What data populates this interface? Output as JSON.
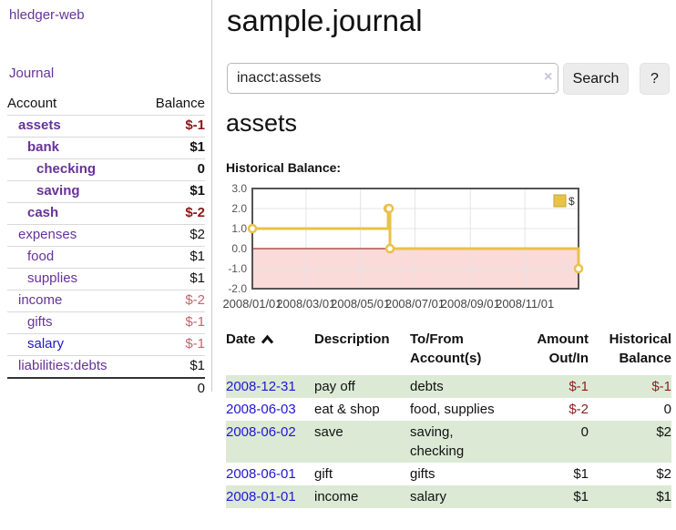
{
  "app": {
    "title": "hledger-web"
  },
  "sidebar": {
    "journal_link": "Journal",
    "accounts": {
      "header_account": "Account",
      "header_balance": "Balance",
      "rows": [
        {
          "name": "assets",
          "depth": 1,
          "bold": true,
          "balance": "$-1",
          "balance_style": "neg-strong",
          "link_color": "purple"
        },
        {
          "name": "bank",
          "depth": 2,
          "bold": true,
          "balance": "$1",
          "balance_style": "pos",
          "link_color": "purple"
        },
        {
          "name": "checking",
          "depth": 3,
          "bold": true,
          "balance": "0",
          "balance_style": "pos",
          "link_color": "purple"
        },
        {
          "name": "saving",
          "depth": 3,
          "bold": true,
          "balance": "$1",
          "balance_style": "pos",
          "link_color": "purple"
        },
        {
          "name": "cash",
          "depth": 2,
          "bold": true,
          "balance": "$-2",
          "balance_style": "neg-strong",
          "link_color": "purple"
        },
        {
          "name": "expenses",
          "depth": 1,
          "bold": false,
          "balance": "$2",
          "balance_style": "pos",
          "link_color": "purple"
        },
        {
          "name": "food",
          "depth": 2,
          "bold": false,
          "balance": "$1",
          "balance_style": "pos",
          "link_color": "purple"
        },
        {
          "name": "supplies",
          "depth": 2,
          "bold": false,
          "balance": "$1",
          "balance_style": "pos",
          "link_color": "purple"
        },
        {
          "name": "income",
          "depth": 1,
          "bold": false,
          "balance": "$-2",
          "balance_style": "neg-light",
          "link_color": "purple"
        },
        {
          "name": "gifts",
          "depth": 2,
          "bold": false,
          "balance": "$-1",
          "balance_style": "neg-light",
          "link_color": "purple"
        },
        {
          "name": "salary",
          "depth": 2,
          "bold": false,
          "balance": "$-1",
          "balance_style": "neg-light",
          "link_color": "blue"
        },
        {
          "name": "liabilities:debts",
          "depth": 1,
          "bold": false,
          "balance": "$1",
          "balance_style": "pos",
          "link_color": "purple"
        }
      ],
      "total": "0"
    }
  },
  "main": {
    "title": "sample.journal",
    "search": {
      "value": "inacct:assets",
      "clear_icon": "×",
      "button_label": "Search",
      "help_label": "?"
    },
    "account_heading": "assets",
    "register": {
      "headers": {
        "date": "Date",
        "description": "Description",
        "accounts": "To/From Account(s)",
        "amount": "Amount Out/In",
        "balance": "Historical Balance"
      },
      "sort": {
        "column": "date",
        "direction": "ascending"
      },
      "rows": [
        {
          "date": "2008-12-31",
          "description": "pay off",
          "accounts": "debts",
          "amount": "$-1",
          "balance": "$-1",
          "amount_negative": true,
          "balance_negative": true,
          "shaded": true
        },
        {
          "date": "2008-06-03",
          "description": "eat & shop",
          "accounts": "food, supplies",
          "amount": "$-2",
          "balance": "0",
          "amount_negative": true,
          "balance_negative": false,
          "shaded": false
        },
        {
          "date": "2008-06-02",
          "description": "save",
          "accounts": "saving,\nchecking",
          "amount": "0",
          "balance": "$2",
          "amount_negative": false,
          "balance_negative": false,
          "shaded": true
        },
        {
          "date": "2008-06-01",
          "description": "gift",
          "accounts": "gifts",
          "amount": "$1",
          "balance": "$2",
          "amount_negative": false,
          "balance_negative": false,
          "shaded": false
        },
        {
          "date": "2008-01-01",
          "description": "income",
          "accounts": "salary",
          "amount": "$1",
          "balance": "$1",
          "amount_negative": false,
          "balance_negative": false,
          "shaded": true
        }
      ]
    }
  },
  "chart_data": {
    "type": "line",
    "title": "Historical Balance:",
    "step": true,
    "series": [
      {
        "name": "$",
        "color": "#e8c24a",
        "points": [
          {
            "date": "2008-01-01",
            "day": 0,
            "value": 1
          },
          {
            "date": "2008-06-01",
            "day": 152,
            "value": 2
          },
          {
            "date": "2008-06-02",
            "day": 153,
            "value": 2
          },
          {
            "date": "2008-06-03",
            "day": 154,
            "value": 0
          },
          {
            "date": "2008-12-31",
            "day": 365,
            "value": -1
          }
        ]
      }
    ],
    "x_ticks": [
      {
        "label": "2008/01/01",
        "day": 0
      },
      {
        "label": "2008/03/01",
        "day": 60
      },
      {
        "label": "2008/05/01",
        "day": 121
      },
      {
        "label": "2008/07/01",
        "day": 182
      },
      {
        "label": "2008/09/01",
        "day": 244
      },
      {
        "label": "2008/11/01",
        "day": 305
      }
    ],
    "y_ticks": [
      "3.0",
      "2.0",
      "1.0",
      "0.0",
      "-1.0",
      "-2.0"
    ],
    "ylim": [
      -2,
      3
    ],
    "x_range_days": [
      0,
      365
    ],
    "legend": {
      "label": "$",
      "position": "top-right"
    },
    "grid": true,
    "negative_region_color": "#fbdada",
    "zero_line_color": "#8b0000",
    "border_color": "#545454",
    "grid_color": "#e4e4e4"
  },
  "colors": {
    "link_purple": "#663399",
    "link_blue": "#2016d2",
    "negative_strong": "#8b1717",
    "negative_light": "#c2666e",
    "register_negative": "#8e2020",
    "row_shade_green": "#dcead5",
    "series_gold": "#e8c24a"
  }
}
